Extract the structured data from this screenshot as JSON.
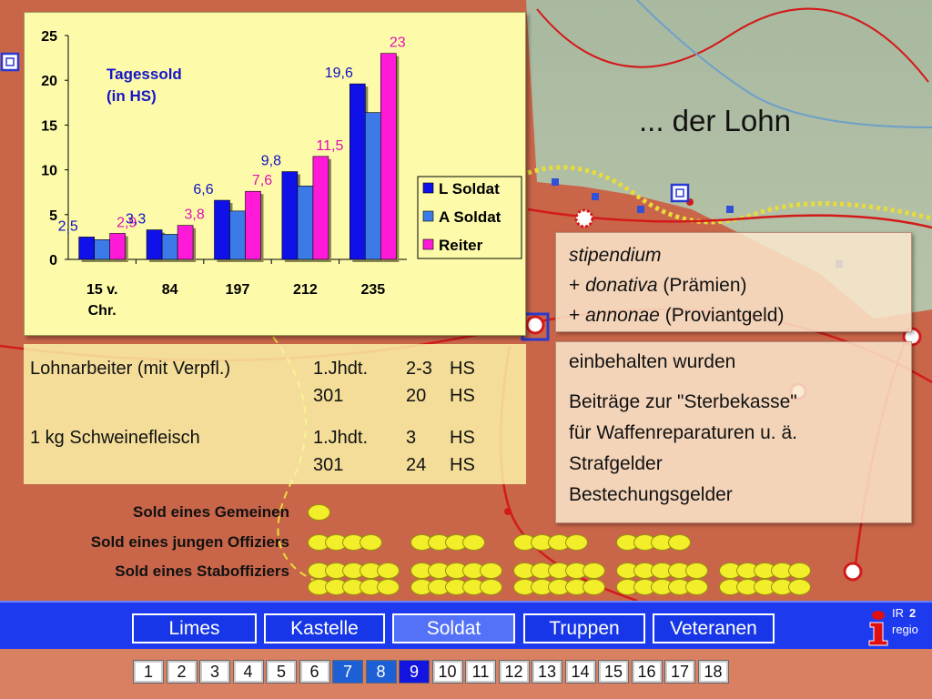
{
  "page_title": "... der Lohn",
  "chart_data": {
    "type": "bar",
    "title": "Tagessold (in HS)",
    "title_lines": [
      "Tagessold",
      "(in HS)"
    ],
    "categories": [
      "15 v. Chr.",
      "84",
      "197",
      "212",
      "235"
    ],
    "category_lines": [
      [
        "15 v.",
        "Chr."
      ],
      [
        "84"
      ],
      [
        "197"
      ],
      [
        "212"
      ],
      [
        "235"
      ]
    ],
    "series": [
      {
        "name": "L Soldat",
        "color": "#1010e8",
        "values": [
          2.5,
          3.3,
          6.6,
          9.8,
          19.6
        ],
        "labels": [
          "2,5",
          "3,3",
          "6,6",
          "9,8",
          "19,6"
        ],
        "label_color": "#1010c0"
      },
      {
        "name": "A Soldat",
        "color": "#3c7ae8",
        "values": [
          2.2,
          2.8,
          5.4,
          8.2,
          16.4
        ],
        "labels": [
          null,
          null,
          null,
          null,
          null
        ],
        "label_color": "#1010c0"
      },
      {
        "name": "Reiter",
        "color": "#ff1ad8",
        "values": [
          2.9,
          3.8,
          7.6,
          11.5,
          23
        ],
        "labels": [
          "2,9",
          "3,8",
          "7,6",
          "11,5",
          "23"
        ],
        "label_color": "#e010b0"
      }
    ],
    "yticks": [
      "0",
      "5",
      "10",
      "15",
      "20",
      "25"
    ],
    "ylim": [
      0,
      25
    ],
    "grid": false,
    "legend": "right"
  },
  "wage_table": {
    "rows": [
      {
        "item": "Lohnarbeiter (mit Verpfl.)",
        "period": "1.Jhdt.",
        "amount": "2-3",
        "unit": "HS"
      },
      {
        "item": "",
        "period": "301",
        "amount": "20",
        "unit": "HS"
      },
      {
        "item": "1 kg Schweinefleisch",
        "period": "1.Jhdt.",
        "amount": "3",
        "unit": "HS"
      },
      {
        "item": "",
        "period": "301",
        "amount": "24",
        "unit": "HS"
      }
    ]
  },
  "income_box": {
    "line1_italic": "stipendium",
    "line2_prefix": "+ ",
    "line2_italic": "donativa",
    "line2_rest": " (Prämien)",
    "line3_prefix": "+ ",
    "line3_italic": "annonae",
    "line3_rest": " (Proviantgeld)"
  },
  "deduction_box": {
    "heading": "einbehalten wurden",
    "items": [
      "Beiträge zur \"Sterbekasse\"",
      "für Waffenreparaturen u. ä.",
      "Strafgelder",
      "Bestechungsgelder"
    ]
  },
  "pay_comparison": [
    {
      "label": "Sold eines Gemeinen",
      "coin_count": 1
    },
    {
      "label": "Sold eines jungen Offiziers",
      "coin_count": 16
    },
    {
      "label": "Sold eines Staboffiziers",
      "coin_count": 50
    }
  ],
  "nav": {
    "tabs": [
      "Limes",
      "Kastelle",
      "Soldat",
      "Truppen",
      "Veteranen"
    ],
    "active_tab": "Soldat"
  },
  "logo": {
    "ir": "IR",
    "num": "2",
    "regio": "regio"
  },
  "pages": {
    "numbers": [
      "1",
      "2",
      "3",
      "4",
      "5",
      "6",
      "7",
      "8",
      "9",
      "10",
      "11",
      "12",
      "13",
      "14",
      "15",
      "16",
      "17",
      "18"
    ],
    "visited": [
      "7",
      "8"
    ],
    "current": "9"
  },
  "colors": {
    "nav_bg": "#1e3aef",
    "panel_bg": "#fdfbaa",
    "coin": "#f3ee2a"
  }
}
